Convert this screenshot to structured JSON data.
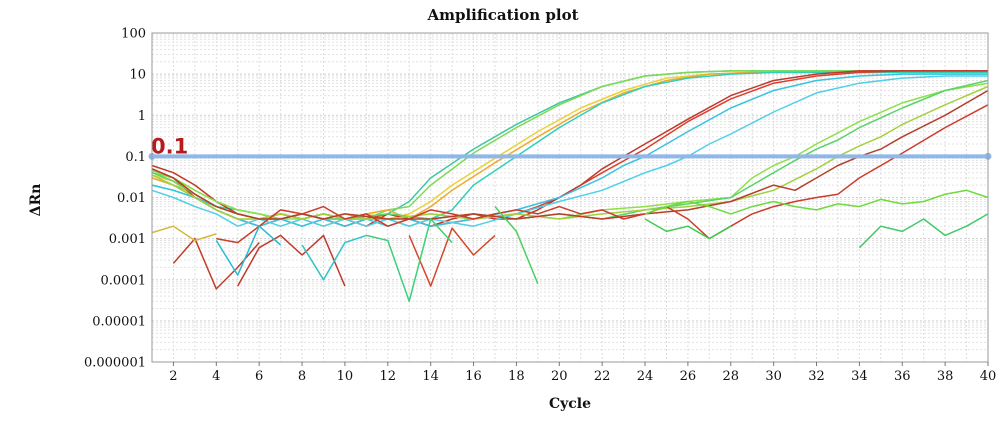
{
  "chart_data": {
    "type": "line",
    "title": "Amplification plot",
    "xlabel": "Cycle",
    "ylabel": "ΔRn",
    "x_scale": "linear",
    "y_scale": "log",
    "xlim": [
      1,
      40
    ],
    "ylim": [
      1e-06,
      100
    ],
    "x_ticks": [
      2,
      4,
      6,
      8,
      10,
      12,
      14,
      16,
      18,
      20,
      22,
      24,
      26,
      28,
      30,
      32,
      34,
      36,
      38,
      40
    ],
    "y_ticks": [
      {
        "value": 1e-06,
        "label": "0.000001"
      },
      {
        "value": 1e-05,
        "label": "0.00001"
      },
      {
        "value": 0.0001,
        "label": "0.0001"
      },
      {
        "value": 0.001,
        "label": "0.001"
      },
      {
        "value": 0.01,
        "label": "0.01"
      },
      {
        "value": 0.1,
        "label": "0.1"
      },
      {
        "value": 1,
        "label": "1"
      },
      {
        "value": 10,
        "label": "10"
      },
      {
        "value": 100,
        "label": "100"
      }
    ],
    "grid": true,
    "threshold": {
      "value": 0.1,
      "label": "0.1",
      "color": "#8fb8e8"
    },
    "series": [
      {
        "color": "#3ec9a0",
        "x": [
          1,
          2,
          3,
          4,
          5,
          6,
          7,
          8,
          9,
          10,
          11,
          12,
          13,
          14,
          16,
          18,
          20,
          22,
          24,
          26,
          28,
          30,
          32,
          34,
          36,
          38,
          40
        ],
        "y": [
          0.03,
          0.02,
          0.012,
          0.006,
          0.004,
          0.003,
          0.004,
          0.003,
          0.004,
          0.003,
          0.003,
          0.004,
          0.008,
          0.03,
          0.15,
          0.6,
          2,
          5,
          9,
          11,
          12,
          12,
          12,
          12,
          12,
          12,
          12
        ]
      },
      {
        "color": "#7ed957",
        "x": [
          1,
          2,
          3,
          4,
          5,
          6,
          7,
          8,
          9,
          10,
          11,
          12,
          13,
          14,
          16,
          18,
          20,
          22,
          24,
          26,
          28,
          30,
          32,
          34,
          36,
          38,
          40
        ],
        "y": [
          0.04,
          0.03,
          0.015,
          0.008,
          0.005,
          0.004,
          0.003,
          0.004,
          0.003,
          0.004,
          0.003,
          0.005,
          0.006,
          0.02,
          0.12,
          0.5,
          1.8,
          5,
          9,
          11,
          12,
          12,
          12,
          12,
          12,
          12,
          12
        ]
      },
      {
        "color": "#e8d23c",
        "x": [
          1,
          2,
          3,
          4,
          5,
          6,
          7,
          8,
          9,
          10,
          11,
          12,
          13,
          14,
          15,
          17,
          19,
          21,
          23,
          25,
          27,
          29,
          31,
          33,
          35,
          37,
          40
        ],
        "y": [
          0.035,
          0.025,
          0.01,
          0.005,
          0.003,
          0.003,
          0.004,
          0.003,
          0.002,
          0.003,
          0.004,
          0.003,
          0.004,
          0.008,
          0.02,
          0.09,
          0.4,
          1.5,
          4,
          8,
          10,
          11,
          11,
          11,
          11,
          11,
          11
        ]
      },
      {
        "color": "#f0a830",
        "x": [
          1,
          2,
          3,
          4,
          5,
          6,
          7,
          8,
          9,
          10,
          11,
          12,
          13,
          14,
          15,
          17,
          19,
          21,
          23,
          25,
          27,
          29,
          31,
          33,
          35,
          37,
          40
        ],
        "y": [
          0.03,
          0.02,
          0.01,
          0.006,
          0.004,
          0.003,
          0.003,
          0.004,
          0.003,
          0.003,
          0.004,
          0.005,
          0.003,
          0.006,
          0.015,
          0.07,
          0.3,
          1.2,
          3.5,
          7,
          10,
          11,
          11,
          11,
          11,
          11,
          11
        ]
      },
      {
        "color": "#2fd0b8",
        "x": [
          1,
          2,
          3,
          4,
          5,
          6,
          7,
          8,
          9,
          10,
          11,
          12,
          13,
          14,
          15,
          16,
          18,
          20,
          22,
          24,
          26,
          28,
          30,
          32,
          34,
          36,
          38,
          40
        ],
        "y": [
          0.02,
          0.015,
          0.01,
          0.006,
          0.005,
          0.004,
          0.003,
          0.002,
          0.003,
          0.002,
          0.003,
          0.003,
          0.002,
          0.003,
          0.005,
          0.02,
          0.1,
          0.5,
          2,
          5,
          8,
          10,
          11,
          11,
          11,
          11,
          11,
          11
        ]
      },
      {
        "color": "#d94030",
        "x": [
          1,
          2,
          3,
          4,
          5,
          6,
          7,
          8,
          9,
          10,
          11,
          12,
          13,
          14,
          16,
          18,
          19,
          20,
          21,
          22,
          24,
          26,
          28,
          30,
          32,
          34,
          36,
          38,
          40
        ],
        "y": [
          0.05,
          0.03,
          0.01,
          0.005,
          0.003,
          0.002,
          0.003,
          0.004,
          0.003,
          0.002,
          0.003,
          0.004,
          0.003,
          0.002,
          0.003,
          0.004,
          0.006,
          0.01,
          0.02,
          0.04,
          0.15,
          0.7,
          2.5,
          6,
          9,
          11,
          12,
          12,
          12
        ]
      },
      {
        "color": "#c0392b",
        "x": [
          1,
          2,
          3,
          4,
          5,
          6,
          7,
          8,
          9,
          10,
          11,
          12,
          13,
          14,
          15,
          16,
          17,
          18,
          19,
          20,
          21,
          22,
          23,
          24,
          26,
          28,
          30,
          32,
          34,
          36,
          38,
          40
        ],
        "y": [
          0.06,
          0.04,
          0.02,
          0.008,
          0.004,
          0.003,
          0.004,
          0.003,
          0.004,
          0.003,
          0.002,
          0.004,
          0.003,
          0.002,
          0.003,
          0.004,
          0.003,
          0.003,
          0.005,
          0.01,
          0.02,
          0.05,
          0.1,
          0.2,
          0.8,
          3,
          7,
          10,
          12,
          12,
          12,
          12
        ]
      },
      {
        "color": "#38c3e0",
        "x": [
          1,
          2,
          3,
          4,
          5,
          6,
          7,
          8,
          9,
          10,
          11,
          12,
          13,
          14,
          16,
          18,
          20,
          22,
          23,
          24,
          25,
          26,
          28,
          30,
          32,
          34,
          36,
          38,
          40
        ],
        "y": [
          0.02,
          0.015,
          0.01,
          0.005,
          0.003,
          0.002,
          0.003,
          0.002,
          0.003,
          0.002,
          0.003,
          0.002,
          0.003,
          0.002,
          0.003,
          0.005,
          0.01,
          0.03,
          0.06,
          0.1,
          0.2,
          0.4,
          1.5,
          4,
          7,
          9,
          10,
          10,
          10
        ]
      },
      {
        "color": "#4fcfe8",
        "x": [
          1,
          2,
          3,
          4,
          5,
          6,
          7,
          8,
          9,
          10,
          11,
          12,
          13,
          14,
          16,
          18,
          20,
          22,
          24,
          25,
          26,
          27,
          28,
          30,
          32,
          34,
          36,
          38,
          40
        ],
        "y": [
          0.015,
          0.01,
          0.006,
          0.004,
          0.002,
          0.003,
          0.002,
          0.003,
          0.002,
          0.003,
          0.002,
          0.003,
          0.002,
          0.003,
          0.002,
          0.004,
          0.008,
          0.015,
          0.04,
          0.06,
          0.1,
          0.2,
          0.35,
          1.2,
          3.5,
          6,
          8,
          9,
          9
        ]
      },
      {
        "color": "#8ee04a",
        "x": [
          1,
          2,
          3,
          4,
          5,
          6,
          7,
          8,
          9,
          10,
          12,
          14,
          16,
          18,
          20,
          22,
          24,
          26,
          28,
          29,
          30,
          31,
          32,
          34,
          36,
          38,
          40
        ],
        "y": [
          0.045,
          0.03,
          0.015,
          0.008,
          0.005,
          0.004,
          0.003,
          0.003,
          0.004,
          0.003,
          0.003,
          0.004,
          0.003,
          0.004,
          0.003,
          0.005,
          0.006,
          0.008,
          0.01,
          0.03,
          0.06,
          0.1,
          0.2,
          0.7,
          2,
          4,
          6
        ]
      },
      {
        "color": "#5bd36a",
        "x": [
          1,
          2,
          3,
          4,
          5,
          6,
          7,
          8,
          9,
          10,
          12,
          14,
          16,
          18,
          20,
          22,
          24,
          26,
          28,
          30,
          31,
          32,
          33,
          34,
          36,
          38,
          40
        ],
        "y": [
          0.04,
          0.025,
          0.012,
          0.006,
          0.004,
          0.003,
          0.003,
          0.004,
          0.003,
          0.003,
          0.004,
          0.003,
          0.004,
          0.003,
          0.004,
          0.003,
          0.005,
          0.007,
          0.01,
          0.04,
          0.08,
          0.15,
          0.25,
          0.5,
          1.5,
          4,
          7
        ]
      },
      {
        "color": "#a5d040",
        "x": [
          1,
          2,
          3,
          4,
          5,
          6,
          7,
          8,
          9,
          10,
          12,
          14,
          16,
          18,
          20,
          22,
          24,
          26,
          28,
          30,
          32,
          33,
          34,
          35,
          36,
          38,
          40
        ],
        "y": [
          0.035,
          0.02,
          0.01,
          0.005,
          0.003,
          0.003,
          0.004,
          0.003,
          0.004,
          0.003,
          0.003,
          0.004,
          0.003,
          0.004,
          0.003,
          0.004,
          0.005,
          0.006,
          0.008,
          0.015,
          0.05,
          0.1,
          0.18,
          0.3,
          0.6,
          1.8,
          5
        ]
      },
      {
        "color": "#b5402a",
        "x": [
          1,
          2,
          3,
          4,
          5,
          6,
          7,
          8,
          9,
          10,
          12,
          14,
          16,
          18,
          20,
          22,
          24,
          26,
          28,
          30,
          31,
          32,
          33,
          34,
          35,
          36,
          38,
          40
        ],
        "y": [
          0.05,
          0.03,
          0.012,
          0.006,
          0.004,
          0.003,
          0.003,
          0.004,
          0.003,
          0.004,
          0.003,
          0.003,
          0.004,
          0.003,
          0.004,
          0.003,
          0.004,
          0.005,
          0.008,
          0.02,
          0.015,
          0.03,
          0.06,
          0.1,
          0.15,
          0.3,
          1,
          4
        ]
      },
      {
        "color": "#cc3c2c",
        "x": [
          4,
          5,
          6,
          7,
          8,
          9,
          10,
          11,
          12,
          13,
          14,
          15,
          16,
          17,
          18,
          19,
          20,
          21,
          22,
          23,
          24,
          25,
          26,
          27,
          28,
          29,
          30,
          31,
          32,
          33,
          34,
          36,
          38,
          40
        ],
        "y": [
          0.001,
          0.0008,
          0.002,
          0.005,
          0.004,
          0.006,
          0.003,
          0.004,
          0.002,
          0.003,
          0.005,
          0.004,
          0.003,
          0.004,
          0.005,
          0.004,
          0.006,
          0.004,
          0.005,
          0.003,
          0.004,
          0.006,
          0.003,
          0.001,
          0.002,
          0.004,
          0.006,
          0.008,
          0.01,
          0.012,
          0.03,
          0.12,
          0.5,
          1.8
        ]
      },
      {
        "color": "#6ddb3c",
        "x": [
          24,
          25,
          26,
          27,
          28,
          29,
          30,
          31,
          32,
          33,
          34,
          35,
          36,
          37,
          38,
          39,
          40
        ],
        "y": [
          0.004,
          0.006,
          0.008,
          0.006,
          0.004,
          0.006,
          0.008,
          0.006,
          0.005,
          0.007,
          0.006,
          0.009,
          0.007,
          0.008,
          0.012,
          0.015,
          0.01
        ]
      },
      {
        "color": "#3fcc4f",
        "x": [
          24,
          25,
          26,
          27,
          28
        ],
        "y": [
          0.003,
          0.0015,
          0.002,
          0.001,
          0.002
        ]
      },
      {
        "color": "#c23b2b",
        "x": [
          2,
          3,
          4,
          5,
          6
        ],
        "y": [
          0.00025,
          0.001,
          6e-05,
          0.0002,
          0.0008
        ]
      },
      {
        "color": "#bf3a2c",
        "x": [
          5,
          6,
          7,
          8,
          9,
          10
        ],
        "y": [
          7e-05,
          0.0006,
          0.0012,
          0.0004,
          0.0012,
          7e-05
        ]
      },
      {
        "color": "#d24a2a",
        "x": [
          13,
          14,
          15,
          16,
          17
        ],
        "y": [
          0.0012,
          7e-05,
          0.0018,
          0.0004,
          0.0012
        ]
      },
      {
        "color": "#2bbbd0",
        "x": [
          4,
          5,
          6,
          7
        ],
        "y": [
          0.0009,
          0.00013,
          0.002,
          0.0007
        ]
      },
      {
        "color": "#2ec4c8",
        "x": [
          8,
          9,
          10,
          11
        ],
        "y": [
          0.0007,
          0.0001,
          0.0008,
          0.0012
        ]
      },
      {
        "color": "#3ecf7a",
        "x": [
          11,
          12,
          13,
          14,
          15
        ],
        "y": [
          0.0012,
          0.0009,
          3e-05,
          0.003,
          0.0008
        ]
      },
      {
        "color": "#4bd060",
        "x": [
          17,
          18,
          19
        ],
        "y": [
          0.006,
          0.0015,
          8e-05
        ]
      },
      {
        "color": "#d5b83a",
        "x": [
          1,
          2,
          3,
          4
        ],
        "y": [
          0.0014,
          0.002,
          0.0009,
          0.0013
        ]
      },
      {
        "color": "#45c96a",
        "x": [
          34,
          35,
          36,
          37,
          38,
          39,
          40
        ],
        "y": [
          0.0006,
          0.002,
          0.0015,
          0.003,
          0.0012,
          0.002,
          0.004
        ]
      }
    ]
  }
}
